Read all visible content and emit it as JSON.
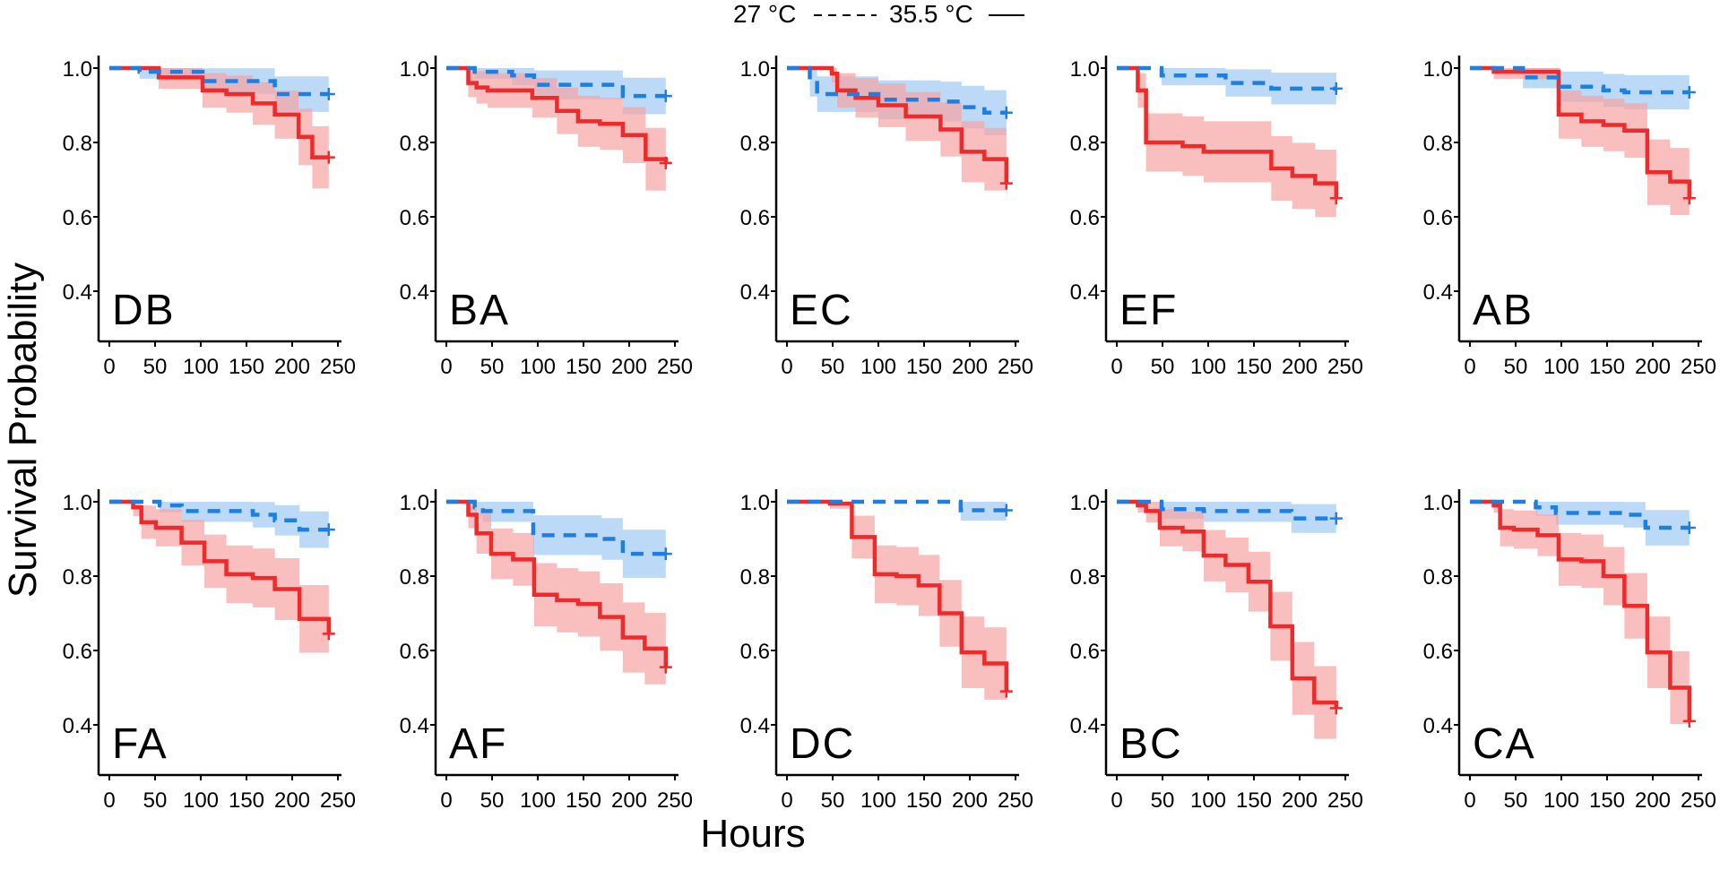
{
  "chart_data": {
    "type": "line",
    "subtype": "kaplan-meier step survival curves, small multiples",
    "xlabel": "Hours",
    "ylabel": "Survival Probability",
    "xlim": [
      0,
      250
    ],
    "ylim": [
      0.4,
      1.0
    ],
    "x_ticks": [
      "0",
      "50",
      "100",
      "150",
      "200",
      "250"
    ],
    "y_ticks": [
      "0.4",
      "0.6",
      "0.8",
      "1.0"
    ],
    "grid": false,
    "legend": {
      "placement": "top-center",
      "entries": [
        {
          "label": "27 °C",
          "style": "dashed",
          "color": "#1e7fe0"
        },
        {
          "label": "35.5 °C",
          "style": "solid",
          "color": "#ee2a2a"
        }
      ]
    },
    "colors": {
      "t27": "#1e7fe0",
      "t35": "#ee2a2a",
      "t27_ci": "#9fcaf3",
      "t35_ci": "#f6a3a3"
    },
    "panels": [
      {
        "label": "DB",
        "t27": [
          [
            0,
            1
          ],
          [
            33,
            0.99
          ],
          [
            102,
            0.965
          ],
          [
            181,
            0.93
          ],
          [
            240,
            0.93
          ]
        ],
        "t35": [
          [
            0,
            1
          ],
          [
            54,
            0.975
          ],
          [
            102,
            0.94
          ],
          [
            128,
            0.93
          ],
          [
            157,
            0.905
          ],
          [
            181,
            0.875
          ],
          [
            207,
            0.815
          ],
          [
            222,
            0.76
          ],
          [
            240,
            0.76
          ]
        ]
      },
      {
        "label": "BA",
        "t27": [
          [
            0,
            1
          ],
          [
            31,
            0.99
          ],
          [
            72,
            0.98
          ],
          [
            96,
            0.955
          ],
          [
            193,
            0.925
          ],
          [
            240,
            0.925
          ]
        ],
        "t35": [
          [
            0,
            1
          ],
          [
            24,
            0.96
          ],
          [
            33,
            0.948
          ],
          [
            45,
            0.94
          ],
          [
            94,
            0.92
          ],
          [
            121,
            0.885
          ],
          [
            144,
            0.857
          ],
          [
            168,
            0.85
          ],
          [
            193,
            0.82
          ],
          [
            218,
            0.755
          ],
          [
            240,
            0.745
          ]
        ]
      },
      {
        "label": "EC",
        "t27": [
          [
            0,
            1
          ],
          [
            25,
            0.96
          ],
          [
            33,
            0.93
          ],
          [
            100,
            0.915
          ],
          [
            168,
            0.91
          ],
          [
            191,
            0.895
          ],
          [
            216,
            0.88
          ],
          [
            240,
            0.88
          ]
        ],
        "t35": [
          [
            0,
            1
          ],
          [
            49,
            0.985
          ],
          [
            55,
            0.94
          ],
          [
            75,
            0.92
          ],
          [
            100,
            0.9
          ],
          [
            130,
            0.87
          ],
          [
            168,
            0.835
          ],
          [
            191,
            0.775
          ],
          [
            216,
            0.755
          ],
          [
            240,
            0.69
          ]
        ]
      },
      {
        "label": "EF",
        "t27": [
          [
            0,
            1
          ],
          [
            49,
            0.98
          ],
          [
            119,
            0.96
          ],
          [
            169,
            0.945
          ],
          [
            240,
            0.945
          ]
        ],
        "t35": [
          [
            0,
            1
          ],
          [
            23,
            0.94
          ],
          [
            32,
            0.8
          ],
          [
            72,
            0.79
          ],
          [
            95,
            0.775
          ],
          [
            169,
            0.73
          ],
          [
            192,
            0.71
          ],
          [
            217,
            0.69
          ],
          [
            240,
            0.65
          ]
        ]
      },
      {
        "label": "AB",
        "t27": [
          [
            0,
            1
          ],
          [
            58,
            0.975
          ],
          [
            99,
            0.95
          ],
          [
            146,
            0.94
          ],
          [
            169,
            0.935
          ],
          [
            240,
            0.935
          ]
        ],
        "t35": [
          [
            0,
            1
          ],
          [
            26,
            0.99
          ],
          [
            97,
            0.875
          ],
          [
            122,
            0.857
          ],
          [
            146,
            0.847
          ],
          [
            169,
            0.832
          ],
          [
            194,
            0.72
          ],
          [
            219,
            0.695
          ],
          [
            240,
            0.65
          ]
        ]
      },
      {
        "label": "FA",
        "t27": [
          [
            0,
            1
          ],
          [
            55,
            0.99
          ],
          [
            79,
            0.975
          ],
          [
            157,
            0.965
          ],
          [
            181,
            0.95
          ],
          [
            208,
            0.925
          ],
          [
            240,
            0.925
          ]
        ],
        "t35": [
          [
            0,
            1
          ],
          [
            26,
            0.985
          ],
          [
            35,
            0.945
          ],
          [
            51,
            0.93
          ],
          [
            79,
            0.89
          ],
          [
            104,
            0.84
          ],
          [
            128,
            0.805
          ],
          [
            157,
            0.795
          ],
          [
            181,
            0.765
          ],
          [
            208,
            0.685
          ],
          [
            240,
            0.645
          ]
        ]
      },
      {
        "label": "AF",
        "t27": [
          [
            0,
            1
          ],
          [
            31,
            0.985
          ],
          [
            40,
            0.975
          ],
          [
            95,
            0.91
          ],
          [
            170,
            0.9
          ],
          [
            193,
            0.86
          ],
          [
            240,
            0.86
          ]
        ],
        "t35": [
          [
            0,
            1
          ],
          [
            24,
            0.965
          ],
          [
            33,
            0.915
          ],
          [
            49,
            0.86
          ],
          [
            73,
            0.845
          ],
          [
            96,
            0.75
          ],
          [
            121,
            0.735
          ],
          [
            144,
            0.725
          ],
          [
            168,
            0.69
          ],
          [
            193,
            0.635
          ],
          [
            217,
            0.605
          ],
          [
            240,
            0.555
          ]
        ]
      },
      {
        "label": "DC",
        "t27": [
          [
            0,
            1
          ],
          [
            190,
            0.977
          ],
          [
            240,
            0.977
          ]
        ],
        "t35": [
          [
            0,
            1
          ],
          [
            47,
            0.995
          ],
          [
            71,
            0.905
          ],
          [
            96,
            0.805
          ],
          [
            120,
            0.8
          ],
          [
            144,
            0.775
          ],
          [
            167,
            0.7
          ],
          [
            191,
            0.595
          ],
          [
            216,
            0.565
          ],
          [
            240,
            0.49
          ]
        ]
      },
      {
        "label": "BC",
        "t27": [
          [
            0,
            1
          ],
          [
            49,
            0.98
          ],
          [
            95,
            0.975
          ],
          [
            191,
            0.955
          ],
          [
            240,
            0.955
          ]
        ],
        "t35": [
          [
            0,
            1
          ],
          [
            23,
            0.99
          ],
          [
            32,
            0.975
          ],
          [
            47,
            0.93
          ],
          [
            72,
            0.92
          ],
          [
            95,
            0.855
          ],
          [
            119,
            0.83
          ],
          [
            144,
            0.785
          ],
          [
            168,
            0.665
          ],
          [
            192,
            0.525
          ],
          [
            216,
            0.46
          ],
          [
            240,
            0.445
          ]
        ]
      },
      {
        "label": "CA",
        "t27": [
          [
            0,
            1
          ],
          [
            72,
            0.985
          ],
          [
            94,
            0.97
          ],
          [
            168,
            0.965
          ],
          [
            192,
            0.93
          ],
          [
            240,
            0.93
          ]
        ],
        "t35": [
          [
            0,
            1
          ],
          [
            26,
            0.99
          ],
          [
            33,
            0.93
          ],
          [
            48,
            0.925
          ],
          [
            74,
            0.91
          ],
          [
            97,
            0.845
          ],
          [
            122,
            0.84
          ],
          [
            146,
            0.8
          ],
          [
            169,
            0.72
          ],
          [
            194,
            0.595
          ],
          [
            219,
            0.5
          ],
          [
            240,
            0.41
          ]
        ]
      }
    ]
  }
}
